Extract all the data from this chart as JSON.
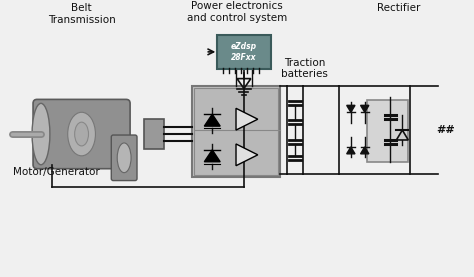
{
  "bg_color": "#f0f0f0",
  "labels": {
    "belt_transmission": "Belt\nTransmission",
    "power_electronics": "Power electronics\nand control system",
    "rectifier": "Rectifier",
    "motor_generator": "Motor/Generator",
    "traction_batteries": "Traction\nbatteries",
    "ezdsp_line1": "eZdsp",
    "ezdsp_line2": "28Fxx"
  },
  "colors": {
    "motor_body": "#909090",
    "motor_face": "#b5b5b5",
    "motor_inner": "#b0b0b0",
    "motor_inner2": "#aaaaaa",
    "shaft": "#888888",
    "pulley": "#909090",
    "coupler": "#999999",
    "inverter_bg": "#c0c0c0",
    "inverter_in": "#b8b8b8",
    "chip_bg": "#6a8a8a",
    "chip_border": "#3a5a5a",
    "rectifier_box": "#d5d5d5",
    "line_color": "#111111",
    "text_color": "#111111",
    "white": "#ffffff",
    "gray_line": "#888888"
  }
}
